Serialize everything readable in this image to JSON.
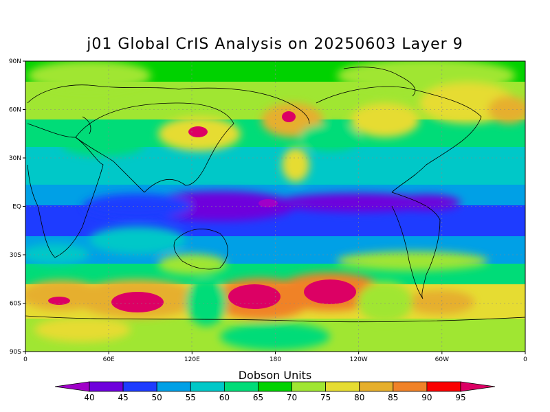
{
  "title": "j01 Global CrIS Analysis on 20250603 Layer 9",
  "colorbar": {
    "title": "Dobson Units",
    "ticks": [
      "40",
      "45",
      "50",
      "55",
      "60",
      "65",
      "70",
      "75",
      "80",
      "85",
      "90",
      "95"
    ],
    "colors": [
      "#a000c8",
      "#6e00dc",
      "#1e3cff",
      "#00a0e6",
      "#00c8c8",
      "#00dc78",
      "#00d200",
      "#a0e632",
      "#e6dc32",
      "#e6af2d",
      "#f08228",
      "#fa0000",
      "#dc0064"
    ]
  },
  "axes": {
    "lat_labels": [
      "90N",
      "60N",
      "30N",
      "EQ",
      "30S",
      "60S",
      "90S"
    ],
    "lon_labels": [
      "0",
      "60E",
      "120E",
      "180",
      "120W",
      "60W",
      "0"
    ]
  }
}
